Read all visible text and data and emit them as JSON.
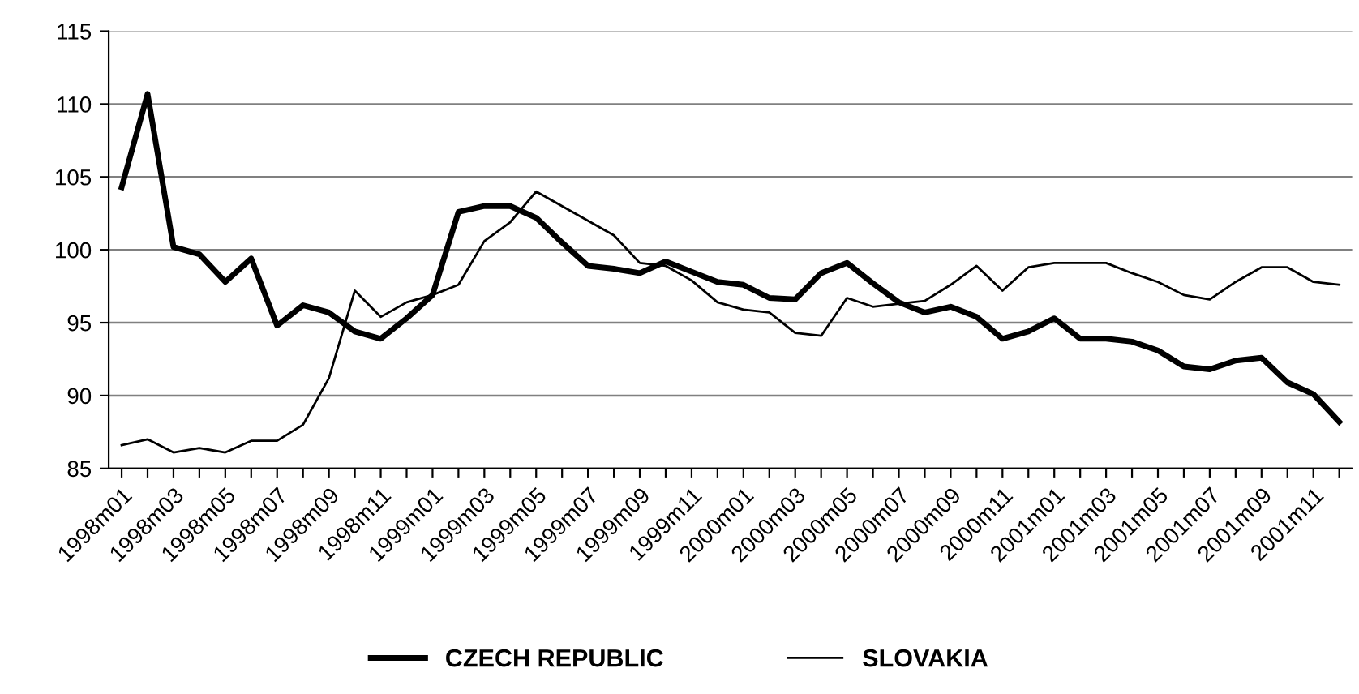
{
  "chart_data": {
    "type": "line",
    "categories": [
      "1998m01",
      null,
      "1998m03",
      null,
      "1998m05",
      null,
      "1998m07",
      null,
      "1998m09",
      null,
      "1998m11",
      null,
      "1999m01",
      null,
      "1999m03",
      null,
      "1999m05",
      null,
      "1999m07",
      null,
      "1999m09",
      null,
      "1999m11",
      null,
      "2000m01",
      null,
      "2000m03",
      null,
      "2000m05",
      null,
      "2000m07",
      null,
      "2000m09",
      null,
      "2000m11",
      null,
      "2001m01",
      null,
      "2001m03",
      null,
      "2001m05",
      null,
      "2001m07",
      null,
      "2001m09",
      null,
      "2001m11",
      null
    ],
    "series": [
      {
        "name": "CZECH REPUBLIC",
        "color": "#000000",
        "values": [
          104.3,
          110.7,
          100.2,
          99.7,
          97.8,
          99.4,
          94.8,
          96.2,
          95.7,
          94.4,
          93.9,
          95.3,
          96.9,
          102.6,
          103.0,
          103.0,
          102.2,
          100.5,
          98.9,
          98.7,
          98.4,
          99.2,
          98.5,
          97.8,
          97.6,
          96.7,
          96.6,
          98.4,
          99.1,
          97.7,
          96.4,
          95.7,
          96.1,
          95.4,
          93.9,
          94.4,
          95.3,
          93.9,
          93.9,
          93.7,
          93.1,
          92.0,
          91.8,
          92.4,
          92.6,
          90.9,
          90.1,
          88.2
        ]
      },
      {
        "name": "SLOVAKIA",
        "color": "#000000",
        "values": [
          86.6,
          87.0,
          86.1,
          86.4,
          86.1,
          86.9,
          86.9,
          88.0,
          91.2,
          97.2,
          95.4,
          96.4,
          96.9,
          97.6,
          100.6,
          101.9,
          104.0,
          103.0,
          102.0,
          101.0,
          99.1,
          98.9,
          97.9,
          96.4,
          95.9,
          95.7,
          94.3,
          94.1,
          96.7,
          96.1,
          96.3,
          96.5,
          97.6,
          98.9,
          97.2,
          98.8,
          99.1,
          99.1,
          99.1,
          98.4,
          97.8,
          96.9,
          96.6,
          97.8,
          98.8,
          98.8,
          97.8,
          97.6
        ]
      }
    ],
    "ylim": [
      85,
      115
    ],
    "yticks": [
      85,
      90,
      95,
      100,
      105,
      110,
      115
    ],
    "grid": "y",
    "legend": "bottom",
    "marker": "none",
    "line_style": "solid"
  }
}
